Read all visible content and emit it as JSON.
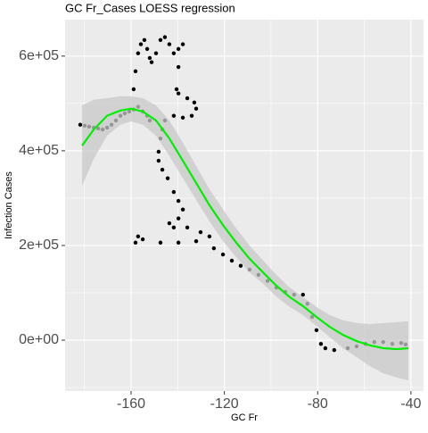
{
  "chart_data": {
    "type": "scatter",
    "title": "GC Fr_Cases LOESS regression",
    "x_label": "GC Fr",
    "y_label": "Infection Cases",
    "x": [
      -181.8,
      -179.9,
      -178.0,
      -176.0,
      -174.1,
      -172.2,
      -170.3,
      -168.4,
      -166.5,
      -164.6,
      -162.7,
      -160.8,
      -158.9,
      -157.0,
      -155.0,
      -153.1,
      -152.0,
      -158.9,
      -158.1,
      -157.0,
      -155.8,
      -154.3,
      -153.1,
      -152.0,
      -151.2,
      -149.3,
      -147.4,
      -145.5,
      -143.6,
      -141.7,
      -139.7,
      -137.8,
      -139.7,
      -140.5,
      -139.7,
      -135.9,
      -132.9,
      -132.1,
      -134.0,
      -137.8,
      -141.7,
      -145.5,
      -146.6,
      -147.4,
      -148.2,
      -148.2,
      -146.6,
      -144.3,
      -141.7,
      -139.7,
      -137.8,
      -139.7,
      -143.6,
      -141.7,
      -135.9,
      -130.2,
      -126.4,
      -132.1,
      -139.7,
      -147.4,
      -155.0,
      -157.0,
      -158.1,
      -124.5,
      -120.6,
      -116.8,
      -113.0,
      -109.2,
      -105.4,
      -101.5,
      -97.7,
      -93.9,
      -90.1,
      -86.3,
      -84.4,
      -82.4,
      -80.5,
      -78.6,
      -76.7,
      -72.9,
      -67.1,
      -63.3,
      -59.5,
      -55.7,
      -51.9,
      -48.0,
      -44.2,
      -42.3
    ],
    "y": [
      455000,
      453000,
      451000,
      449000,
      447000,
      445000,
      449000,
      455000,
      464000,
      474000,
      479000,
      483000,
      487000,
      493000,
      483000,
      474000,
      464000,
      530000,
      568000,
      606000,
      625000,
      634000,
      615000,
      596000,
      587000,
      606000,
      634000,
      640000,
      625000,
      606000,
      615000,
      625000,
      577000,
      530000,
      521000,
      511000,
      502000,
      489000,
      474000,
      470000,
      474000,
      464000,
      445000,
      426000,
      398000,
      379000,
      360000,
      342000,
      313000,
      294000,
      276000,
      257000,
      247000,
      238000,
      238000,
      228000,
      219000,
      209000,
      206000,
      206000,
      213000,
      219000,
      206000,
      194000,
      181000,
      168000,
      157000,
      149000,
      138000,
      125000,
      111000,
      102000,
      96000,
      96000,
      77000,
      49000,
      21000,
      -8000,
      -17000,
      -21000,
      -17000,
      -13000,
      -8000,
      -4000,
      -4000,
      -8000,
      -6000,
      -9000
    ],
    "color": "#000000",
    "loess": {
      "color": "#00ee00",
      "band_color": "#c8c8c8",
      "x": [
        -181.0,
        -176.0,
        -170.3,
        -164.6,
        -160.0,
        -155.0,
        -149.3,
        -143.6,
        -137.8,
        -132.1,
        -126.4,
        -120.6,
        -114.9,
        -109.2,
        -103.4,
        -97.7,
        -92.0,
        -86.3,
        -80.5,
        -74.8,
        -69.1,
        -63.3,
        -57.6,
        -51.9,
        -46.1,
        -41.1
      ],
      "y": [
        411000,
        445000,
        474000,
        485000,
        489000,
        483000,
        464000,
        426000,
        379000,
        332000,
        285000,
        243000,
        206000,
        172000,
        143000,
        115000,
        91000,
        72000,
        49000,
        28000,
        11000,
        -2000,
        -11000,
        -17000,
        -19000,
        -17000
      ],
      "upper": [
        496000,
        508000,
        511000,
        515000,
        515000,
        511000,
        496000,
        464000,
        417000,
        368000,
        319000,
        276000,
        236000,
        200000,
        168000,
        138000,
        111000,
        91000,
        70000,
        53000,
        42000,
        36000,
        34000,
        36000,
        38000,
        40000
      ],
      "lower": [
        326000,
        383000,
        432000,
        455000,
        462000,
        455000,
        432000,
        389000,
        342000,
        296000,
        251000,
        209000,
        175000,
        143000,
        119000,
        92000,
        70000,
        53000,
        30000,
        6000,
        -17000,
        -36000,
        -55000,
        -70000,
        -79000,
        -85000
      ]
    },
    "xlim": [
      -188.3,
      -34.6
    ],
    "ylim": [
      -107500,
      677000
    ],
    "xticks": [
      -160,
      -120,
      -80,
      -40
    ],
    "yticks": [
      {
        "value": 0,
        "label": "0e+00"
      },
      {
        "value": 200000,
        "label": "2e+05"
      },
      {
        "value": 400000,
        "label": "4e+05"
      },
      {
        "value": 600000,
        "label": "6e+05"
      }
    ],
    "x_minor_grid": [
      -180,
      -140,
      -100,
      -60
    ],
    "y_minor_grid": [
      -100000,
      100000,
      300000,
      500000
    ],
    "grid": true,
    "background": "#ebebeb"
  }
}
